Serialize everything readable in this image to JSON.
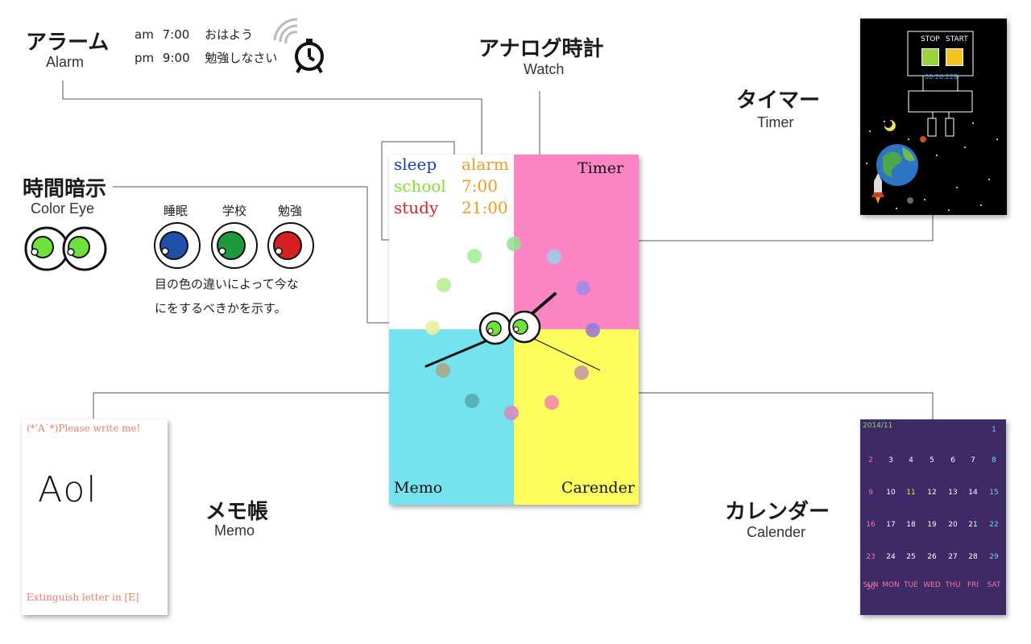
{
  "alarm": {
    "title_jp": "アラーム",
    "title_en": "Alarm",
    "rows": [
      {
        "ampm": "am",
        "time": "7:00",
        "message": "おはよう"
      },
      {
        "ampm": "pm",
        "time": "9:00",
        "message": "勉強しなさい"
      }
    ],
    "icon": "alarm-clock-icon"
  },
  "watch": {
    "title_jp": "アナログ時計",
    "title_en": "Watch"
  },
  "timer": {
    "title_jp": "タイマー",
    "title_en": "Timer"
  },
  "color_eye": {
    "title_jp": "時間暗示",
    "title_en": "Color Eye",
    "states": [
      {
        "label": "睡眠",
        "color": "#1f4fa8"
      },
      {
        "label": "学校",
        "color": "#1f9a3a"
      },
      {
        "label": "勉強",
        "color": "#d42020"
      }
    ],
    "desc_line1": "目の色の違いによって今な",
    "desc_line2": "にをするべきかを示す。"
  },
  "memo": {
    "title_jp": "メモ帳",
    "title_en": "Memo"
  },
  "calendar": {
    "title_jp": "カレンダー",
    "title_en": "Calender"
  },
  "app": {
    "legend": {
      "sleep": "sleep",
      "school": "school",
      "study": "study",
      "alarm": "alarm",
      "alarm_time1": "7:00",
      "alarm_time2": "21:00"
    },
    "quadrants": {
      "timer": "Timer",
      "memo": "Memo",
      "calendar": "Carender"
    },
    "colors": {
      "pink": "#fd85c6",
      "cyan": "#75e3ef",
      "yellow": "#fcfd5c"
    }
  },
  "timer_shot": {
    "stop": "STOP",
    "start": "START",
    "time": "00:26:228"
  },
  "memo_shot": {
    "header": "(*'A`*)Please write me!",
    "handwriting": "Aol",
    "footer": "Extinguish letter in [E]"
  },
  "calendar_shot": {
    "month": "2014/11",
    "weeks": [
      [
        "",
        "",
        "",
        "",
        "",
        "",
        "1"
      ],
      [
        "2",
        "3",
        "4",
        "5",
        "6",
        "7",
        "8"
      ],
      [
        "9",
        "10",
        "11",
        "12",
        "13",
        "14",
        "15"
      ],
      [
        "16",
        "17",
        "18",
        "19",
        "20",
        "21",
        "22"
      ],
      [
        "23",
        "24",
        "25",
        "26",
        "27",
        "28",
        "29"
      ],
      [
        "30",
        "",
        "",
        "",
        "",
        "",
        ""
      ]
    ],
    "weekdays": [
      "SUN",
      "MON",
      "TUE",
      "WED",
      "THU",
      "FRI",
      "SAT"
    ]
  }
}
